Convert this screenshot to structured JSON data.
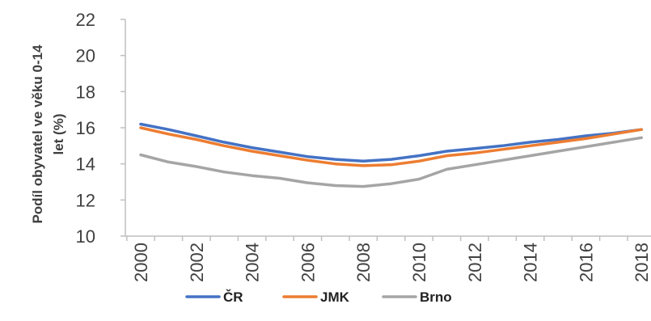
{
  "chart_data": {
    "type": "line",
    "title": "",
    "xlabel": "",
    "ylabel_lines": [
      "Podíl  obyvatel ve věku 0-14",
      "let (%)"
    ],
    "x": [
      2000,
      2001,
      2002,
      2003,
      2004,
      2005,
      2006,
      2007,
      2008,
      2009,
      2010,
      2011,
      2012,
      2013,
      2014,
      2015,
      2016,
      2017,
      2018
    ],
    "x_tick_labels": [
      "2000",
      "2002",
      "2004",
      "2006",
      "2008",
      "2010",
      "2012",
      "2014",
      "2016",
      "2018"
    ],
    "ylim": [
      10,
      22
    ],
    "y_tick_labels": [
      "10",
      "12",
      "14",
      "16",
      "18",
      "20",
      "22"
    ],
    "grid": false,
    "legend_position": "bottom",
    "series": [
      {
        "name": "ČR",
        "color": "#4472C4",
        "values": [
          16.2,
          15.9,
          15.55,
          15.2,
          14.9,
          14.65,
          14.4,
          14.25,
          14.15,
          14.25,
          14.45,
          14.7,
          14.85,
          15.0,
          15.2,
          15.35,
          15.55,
          15.7,
          15.9
        ]
      },
      {
        "name": "JMK",
        "color": "#ED7D31",
        "values": [
          16.0,
          15.65,
          15.35,
          15.0,
          14.7,
          14.45,
          14.2,
          14.0,
          13.9,
          13.95,
          14.15,
          14.45,
          14.6,
          14.8,
          15.0,
          15.2,
          15.4,
          15.65,
          15.9
        ]
      },
      {
        "name": "Brno",
        "color": "#A5A5A5",
        "values": [
          14.5,
          14.1,
          13.85,
          13.55,
          13.35,
          13.2,
          12.95,
          12.8,
          12.75,
          12.9,
          13.15,
          13.7,
          13.95,
          14.2,
          14.45,
          14.7,
          14.95,
          15.2,
          15.45
        ]
      }
    ]
  }
}
